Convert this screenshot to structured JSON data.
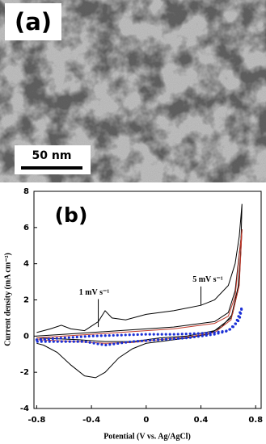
{
  "image_panel": {
    "label": "(a)",
    "scale_bar": "50 nm"
  },
  "chart_data": {
    "type": "line",
    "panel_label": "(b)",
    "x_label": "Potential (V vs. Ag/AgCl)",
    "y_label": "Current density (mA cm⁻²)",
    "xlim": [
      -0.82,
      0.84
    ],
    "ylim": [
      -4,
      8
    ],
    "xticks": [
      -0.8,
      -0.4,
      0,
      0.4,
      0.8
    ],
    "yticks": [
      -4,
      -2,
      0,
      2,
      4,
      6,
      8
    ],
    "annotations": [
      "1 mV s⁻¹",
      "5 mV s⁻¹"
    ],
    "series": [
      {
        "color": "#000000",
        "style": "solid",
        "x": [
          -0.8,
          -0.7,
          -0.62,
          -0.55,
          -0.45,
          -0.35,
          -0.3,
          -0.25,
          -0.15,
          0,
          0.2,
          0.4,
          0.5,
          0.6,
          0.65,
          0.68,
          0.7,
          0.69,
          0.67,
          0.63,
          0.55,
          0.45,
          0.3,
          0.1,
          0,
          -0.1,
          -0.2,
          -0.3,
          -0.37,
          -0.45,
          -0.55,
          -0.65,
          -0.75,
          -0.8
        ],
        "values": [
          0.2,
          0.4,
          0.6,
          0.4,
          0.3,
          0.8,
          1.4,
          1.0,
          0.9,
          1.2,
          1.4,
          1.7,
          2.0,
          2.8,
          4.0,
          5.5,
          7.3,
          4.5,
          2.5,
          1.2,
          0.5,
          0.1,
          -0.1,
          -0.3,
          -0.4,
          -0.7,
          -1.2,
          -2.0,
          -2.3,
          -2.2,
          -1.6,
          -0.9,
          -0.5,
          -0.4
        ]
      },
      {
        "color": "#000000",
        "style": "solid",
        "x": [
          -0.8,
          -0.6,
          -0.4,
          -0.2,
          0,
          0.2,
          0.4,
          0.5,
          0.6,
          0.65,
          0.7,
          0.68,
          0.62,
          0.5,
          0.3,
          0.1,
          -0.1,
          -0.3,
          -0.5,
          -0.8
        ],
        "values": [
          0.0,
          0.1,
          0.2,
          0.3,
          0.4,
          0.5,
          0.7,
          0.8,
          1.3,
          2.5,
          5.9,
          3.0,
          1.0,
          0.3,
          0.0,
          -0.1,
          -0.3,
          -0.3,
          -0.2,
          -0.1
        ]
      },
      {
        "color": "#c0392b",
        "style": "solid",
        "x": [
          -0.8,
          -0.6,
          -0.4,
          -0.2,
          0,
          0.2,
          0.4,
          0.5,
          0.6,
          0.65,
          0.7,
          0.68,
          0.62,
          0.5,
          0.3,
          0.1,
          -0.1,
          -0.3,
          -0.5,
          -0.8
        ],
        "values": [
          -0.1,
          0.0,
          0.1,
          0.2,
          0.3,
          0.4,
          0.6,
          0.7,
          1.1,
          2.2,
          5.9,
          2.8,
          0.9,
          0.2,
          -0.05,
          -0.2,
          -0.35,
          -0.4,
          -0.3,
          -0.2
        ]
      },
      {
        "color": "#1a2fd6",
        "style": "dotted",
        "x": [
          -0.8,
          -0.6,
          -0.4,
          -0.2,
          0,
          0.2,
          0.4,
          0.5,
          0.6,
          0.65,
          0.7,
          0.68,
          0.6,
          0.5,
          0.3,
          0.1,
          -0.1,
          -0.3,
          -0.45,
          -0.6,
          -0.8
        ],
        "values": [
          -0.2,
          -0.1,
          0,
          0.05,
          0.1,
          0.1,
          0.15,
          0.2,
          0.3,
          0.6,
          1.6,
          0.9,
          0.3,
          0.1,
          -0.1,
          -0.2,
          -0.3,
          -0.5,
          -0.3,
          -0.3,
          -0.3
        ]
      }
    ]
  }
}
